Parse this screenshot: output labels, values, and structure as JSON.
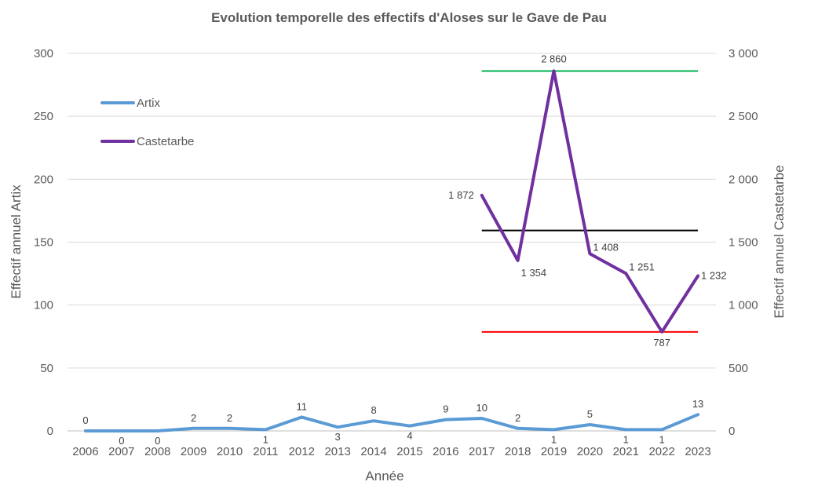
{
  "chart_data": {
    "type": "line",
    "title": "Evolution temporelle des effectifs d'Aloses sur le Gave de Pau",
    "xlabel": "Année",
    "ylabel_left": "Effectif annuel Artix",
    "ylabel_right": "Effectif annuel Castetarbe",
    "categories": [
      "2006",
      "2007",
      "2008",
      "2009",
      "2010",
      "2011",
      "2012",
      "2013",
      "2014",
      "2015",
      "2016",
      "2017",
      "2018",
      "2019",
      "2020",
      "2021",
      "2022",
      "2023"
    ],
    "ylim_left": [
      0,
      300
    ],
    "yticks_left": [
      "0",
      "50",
      "100",
      "150",
      "200",
      "250",
      "300"
    ],
    "ylim_right": [
      0,
      3000
    ],
    "yticks_right": [
      "0",
      "500",
      "1 000",
      "1 500",
      "2 000",
      "2 500",
      "3 000"
    ],
    "grid": true,
    "legend_position": "top-left inside",
    "series": [
      {
        "name": "Artix",
        "axis": "left",
        "color": "#5B9BD5",
        "values": [
          0,
          0,
          0,
          2,
          2,
          1,
          11,
          3,
          8,
          4,
          9,
          10,
          2,
          1,
          5,
          1,
          1,
          13
        ],
        "labels": [
          "0",
          "0",
          "0",
          "2",
          "2",
          "1",
          "11",
          "3",
          "8",
          "4",
          "9",
          "10",
          "2",
          "1",
          "5",
          "1",
          "1",
          "13"
        ]
      },
      {
        "name": "Castetarbe",
        "axis": "right",
        "color": "#7030A0",
        "values": [
          null,
          null,
          null,
          null,
          null,
          null,
          null,
          null,
          null,
          null,
          null,
          1872,
          1354,
          2860,
          1408,
          1251,
          787,
          1232
        ],
        "labels": [
          "",
          "",
          "",
          "",
          "",
          "",
          "",
          "",
          "",
          "",
          "",
          "1 872",
          "1 354",
          "2 860",
          "1 408",
          "1 251",
          "787",
          "1 232"
        ]
      }
    ],
    "reference_lines": [
      {
        "axis": "right",
        "value": 2860,
        "color": "#00B050",
        "from": "2017",
        "to": "2023"
      },
      {
        "axis": "right",
        "value": 1593,
        "color": "#000000",
        "from": "2017",
        "to": "2023"
      },
      {
        "axis": "right",
        "value": 787,
        "color": "#FF0000",
        "from": "2017",
        "to": "2023"
      }
    ]
  }
}
